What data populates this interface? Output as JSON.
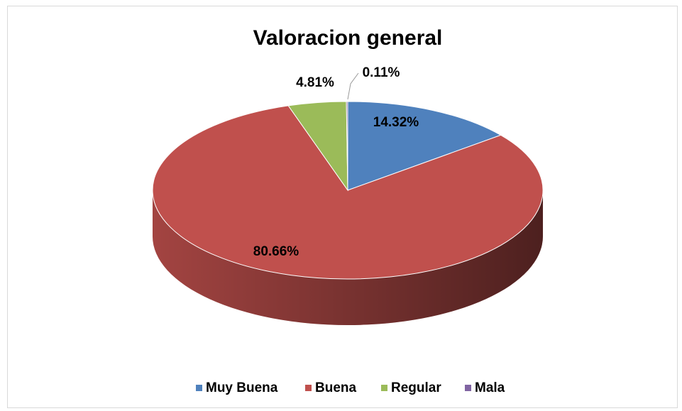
{
  "chart_data": {
    "type": "pie",
    "title": "Valoracion general",
    "categories": [
      "Muy Buena",
      "Buena",
      "Regular",
      "Mala"
    ],
    "values": [
      14.32,
      80.66,
      4.81,
      0.11
    ],
    "value_labels": [
      "14.32%",
      "80.66%",
      "4.81%",
      "0.11%"
    ],
    "colors": [
      "#4f81bd",
      "#c0504d",
      "#9bbb59",
      "#8064a2"
    ],
    "legend": "bottom"
  }
}
